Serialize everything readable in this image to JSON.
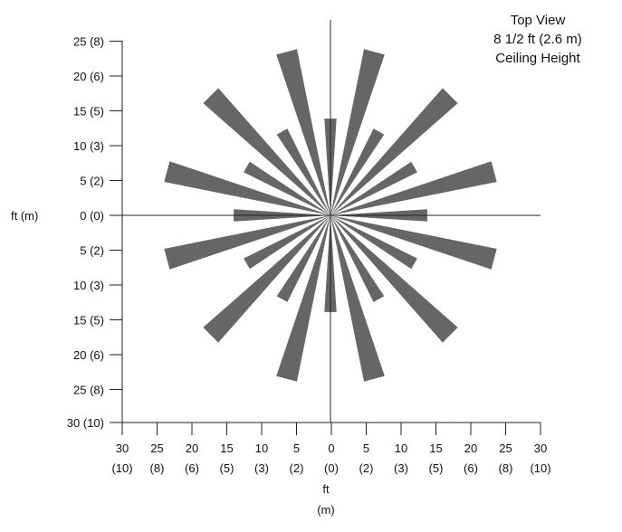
{
  "info": {
    "line1": "Top View",
    "line2": "8 1/2 ft (2.6 m)",
    "line3": "Ceiling Height"
  },
  "axes": {
    "y_title": "ft (m)",
    "x_title_line1": "ft",
    "x_title_line2": "(m)"
  },
  "chart_data": {
    "type": "diagram",
    "description_shown": "coverage pattern of radial wedge beams",
    "y_tick_labels": [
      "25 (8)",
      "20 (6)",
      "15 (5)",
      "10 (3)",
      "5 (2)",
      "0 (0)",
      "5 (2)",
      "10 (3)",
      "15 (5)",
      "20 (6)",
      "25 (8)",
      "30 (10)"
    ],
    "x_tick_labels": [
      {
        "ft": "30",
        "m": "(10)"
      },
      {
        "ft": "25",
        "m": "(8)"
      },
      {
        "ft": "20",
        "m": "(6)"
      },
      {
        "ft": "15",
        "m": "(5)"
      },
      {
        "ft": "10",
        "m": "(3)"
      },
      {
        "ft": "5",
        "m": "(2)"
      },
      {
        "ft": "0",
        "m": "(0)"
      },
      {
        "ft": "5",
        "m": "(2)"
      },
      {
        "ft": "10",
        "m": "(3)"
      },
      {
        "ft": "15",
        "m": "(5)"
      },
      {
        "ft": "20",
        "m": "(6)"
      },
      {
        "ft": "25",
        "m": "(8)"
      },
      {
        "ft": "30",
        "m": "(10)"
      }
    ],
    "beams": [
      {
        "angle_deg": 90,
        "length_ft": 14
      },
      {
        "angle_deg": 75,
        "length_ft": 24.5
      },
      {
        "angle_deg": 60,
        "length_ft": 14
      },
      {
        "angle_deg": 45,
        "length_ft": 24.5
      },
      {
        "angle_deg": 30,
        "length_ft": 14
      },
      {
        "angle_deg": 15,
        "length_ft": 24.5
      },
      {
        "angle_deg": 0,
        "length_ft": 14
      },
      {
        "angle_deg": -15,
        "length_ft": 24.5
      },
      {
        "angle_deg": -30,
        "length_ft": 14
      },
      {
        "angle_deg": -45,
        "length_ft": 24.5
      },
      {
        "angle_deg": -60,
        "length_ft": 14
      },
      {
        "angle_deg": -75,
        "length_ft": 24.5
      },
      {
        "angle_deg": -90,
        "length_ft": 14
      },
      {
        "angle_deg": -105,
        "length_ft": 24.5
      },
      {
        "angle_deg": -120,
        "length_ft": 14
      },
      {
        "angle_deg": -135,
        "length_ft": 24.5
      },
      {
        "angle_deg": -150,
        "length_ft": 14
      },
      {
        "angle_deg": -165,
        "length_ft": 24.5
      },
      {
        "angle_deg": 180,
        "length_ft": 14
      },
      {
        "angle_deg": 165,
        "length_ft": 24.5
      },
      {
        "angle_deg": 150,
        "length_ft": 14
      },
      {
        "angle_deg": 135,
        "length_ft": 24.5
      },
      {
        "angle_deg": 120,
        "length_ft": 14
      },
      {
        "angle_deg": 105,
        "length_ft": 24.5
      }
    ],
    "beam_color": "#666666",
    "axis_color": "#222222"
  }
}
